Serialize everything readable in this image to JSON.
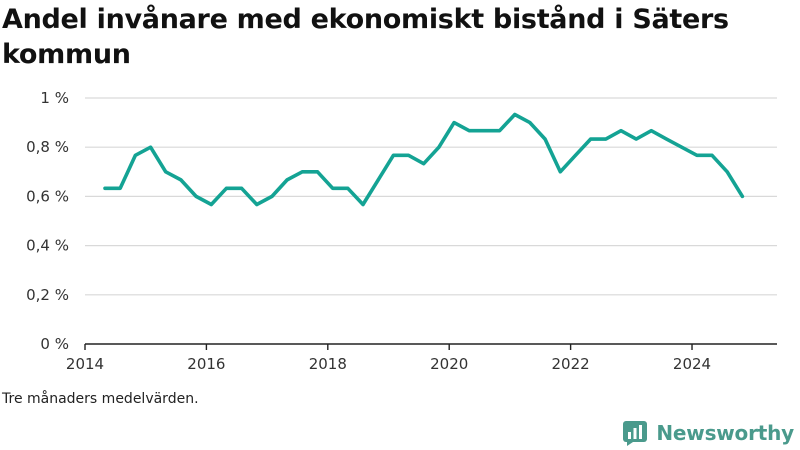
{
  "title": "Andel invånare med ekonomiskt bistånd i Säters kommun",
  "footnote": "Tre månaders medelvärden.",
  "brand": {
    "name": "Newsworthy",
    "color": "#4a9a8c"
  },
  "colors": {
    "line": "#14a394",
    "grid": "#d9d9d9",
    "axis": "#222222"
  },
  "chart_data": {
    "type": "line",
    "title": "Andel invånare med ekonomiskt bistånd i Säters kommun",
    "xlabel": "",
    "ylabel": "",
    "xlim": [
      2014.0,
      2025.4
    ],
    "ylim": [
      0,
      1
    ],
    "x_ticks": [
      2014,
      2016,
      2018,
      2020,
      2022,
      2024
    ],
    "y_ticks": [
      {
        "value": 0,
        "label": "0 %"
      },
      {
        "value": 0.2,
        "label": "0,2 %"
      },
      {
        "value": 0.4,
        "label": "0,4 %"
      },
      {
        "value": 0.6,
        "label": "0,6 %"
      },
      {
        "value": 0.8,
        "label": "0,8 %"
      },
      {
        "value": 1.0,
        "label": "1 %"
      }
    ],
    "grid": true,
    "series": [
      {
        "x": [
          2014.33,
          2014.58,
          2014.83,
          2015.08,
          2015.33,
          2015.58,
          2015.83,
          2016.08,
          2016.33,
          2016.58,
          2016.83,
          2017.08,
          2017.33,
          2017.58,
          2017.83,
          2018.08,
          2018.33,
          2018.58,
          2018.83,
          2019.08,
          2019.33,
          2019.58,
          2019.83,
          2020.08,
          2020.33,
          2020.58,
          2020.83,
          2021.08,
          2021.33,
          2021.58,
          2021.83,
          2022.08,
          2022.33,
          2022.58,
          2022.83,
          2023.08,
          2023.33,
          2023.58,
          2023.83,
          2024.08,
          2024.33,
          2024.58,
          2024.83
        ],
        "values": [
          0.633,
          0.633,
          0.767,
          0.8,
          0.7,
          0.667,
          0.6,
          0.567,
          0.633,
          0.633,
          0.567,
          0.6,
          0.667,
          0.7,
          0.7,
          0.633,
          0.633,
          0.567,
          0.667,
          0.767,
          0.767,
          0.733,
          0.8,
          0.9,
          0.867,
          0.867,
          0.867,
          0.933,
          0.9,
          0.833,
          0.7,
          0.767,
          0.833,
          0.833,
          0.867,
          0.833,
          0.867,
          0.833,
          0.8,
          0.767,
          0.767,
          0.7,
          0.6
        ]
      }
    ]
  }
}
